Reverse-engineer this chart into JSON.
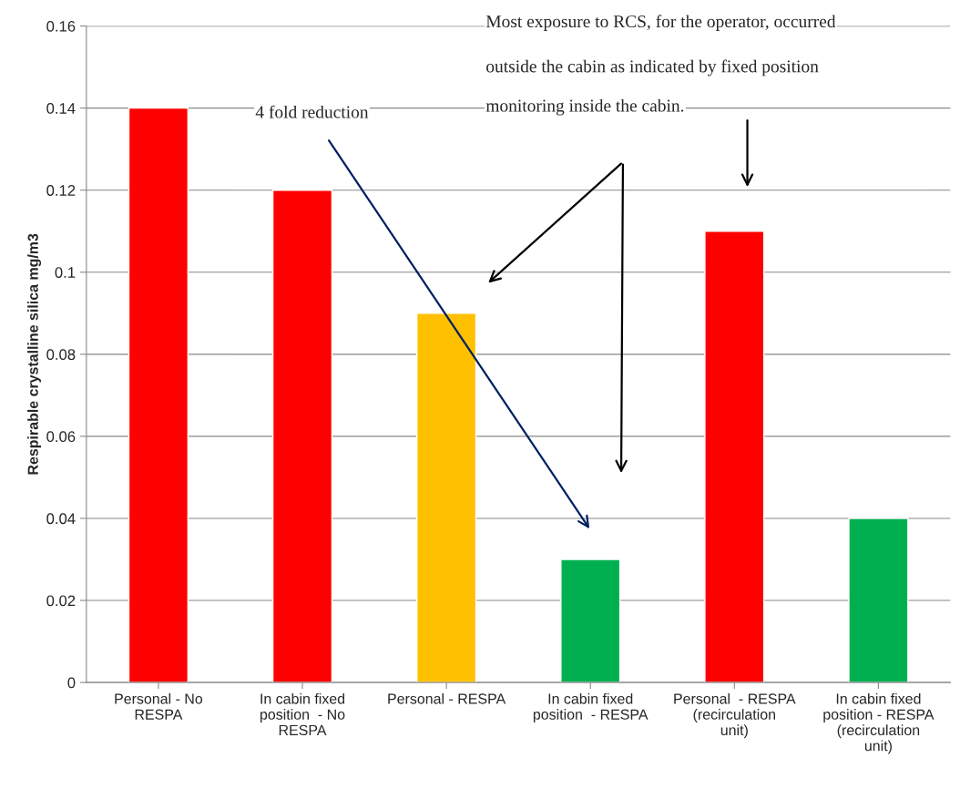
{
  "chart_data": {
    "type": "bar",
    "ylabel": "Respirable crystalline silica mg/m3",
    "categories": [
      "Personal - No\nRESPA",
      "In cabin fixed\nposition  - No\nRESPA",
      "Personal - RESPA",
      "In cabin fixed\nposition  - RESPA",
      "Personal  - RESPA\n(recirculation\nunit)",
      "In cabin fixed\nposition - RESPA\n(recirculation\nunit)"
    ],
    "values": [
      0.14,
      0.12,
      0.09,
      0.03,
      0.11,
      0.04
    ],
    "colors": [
      "#ff0000",
      "#ff0000",
      "#ffc000",
      "#00b050",
      "#ff0000",
      "#00b050"
    ],
    "ylim": [
      0,
      0.16
    ],
    "yticks": [
      0,
      0.02,
      0.04,
      0.06,
      0.08,
      0.1,
      0.12,
      0.14,
      0.16
    ],
    "grid": "y",
    "annotations": [
      "4 fold reduction",
      "Most exposure to RCS, for the operator, occurred",
      "outside the cabin as indicated by fixed position",
      "monitoring inside the cabin."
    ]
  }
}
